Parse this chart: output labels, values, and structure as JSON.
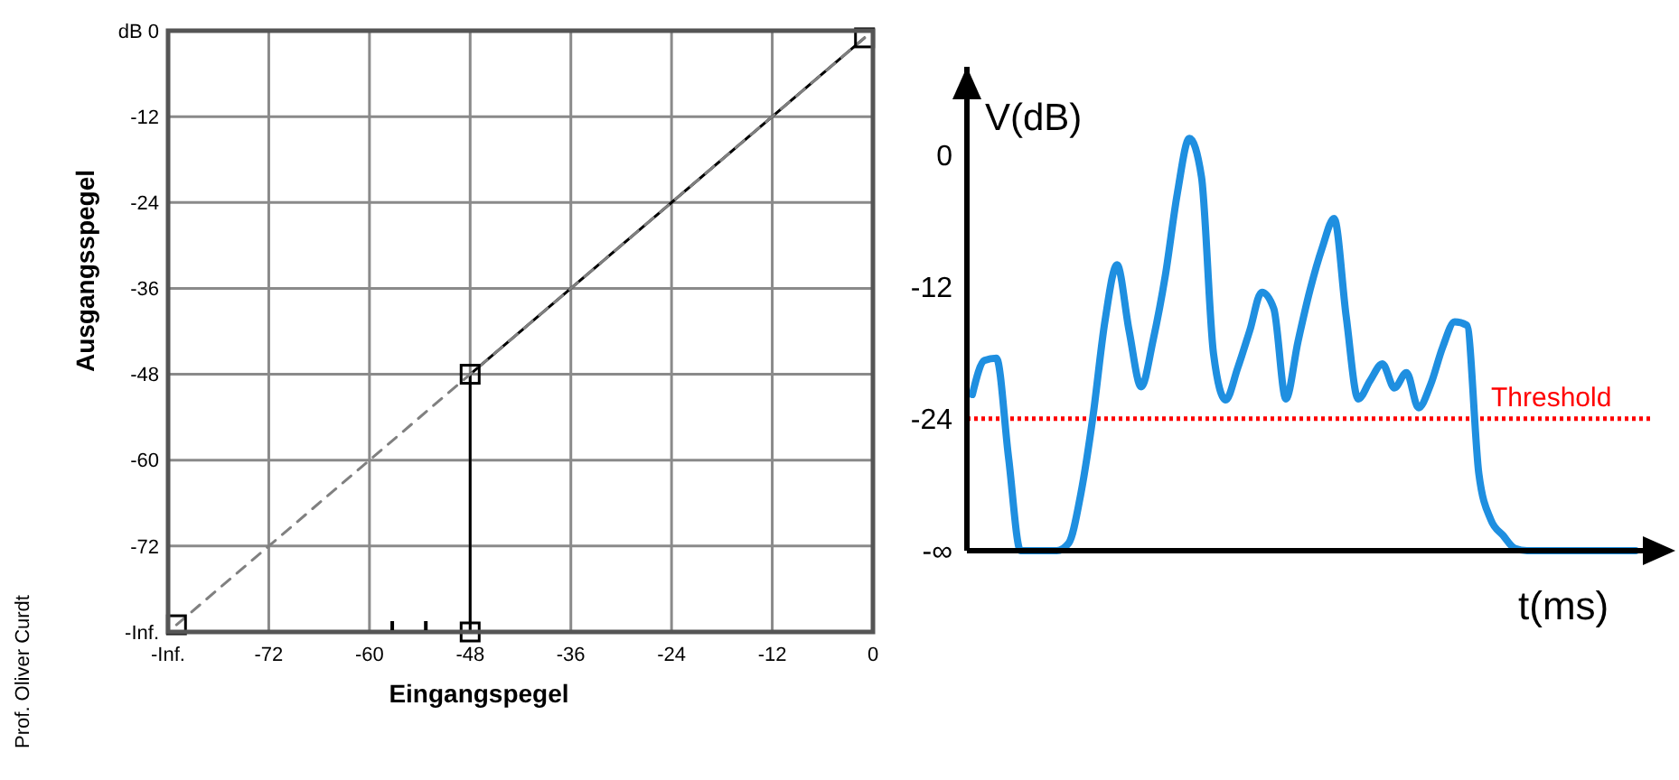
{
  "chart_data": [
    {
      "type": "line",
      "xlabel": "Eingangspegel",
      "ylabel": "Ausgangsspegel",
      "xlim": [
        -84,
        0
      ],
      "ylim": [
        -84,
        0
      ],
      "xticks": [
        {
          "value": -84,
          "label": "-Inf."
        },
        -72,
        -60,
        -48,
        -36,
        -24,
        -12,
        0
      ],
      "yticks": [
        {
          "value": -84,
          "label": "-Inf."
        },
        -72,
        -60,
        -48,
        -36,
        -24,
        -12,
        {
          "value": 0,
          "label": "dB 0"
        }
      ],
      "grid": true,
      "annotations": [
        "Prof. Oliver Curdt"
      ],
      "series": [
        {
          "x": [
            -48,
            -48,
            -1
          ],
          "values": [
            -84,
            -48,
            -1
          ],
          "color": "#000000",
          "line_style": "solid",
          "marker": "none"
        },
        {
          "x": [
            -83,
            -1
          ],
          "values": [
            -83,
            -1
          ],
          "color": "#808080",
          "line_style": "dashed",
          "marker": "none"
        },
        {
          "type": "scatter",
          "x": [
            -83,
            -48,
            -48,
            -1
          ],
          "values": [
            -83,
            -48,
            -84,
            -1
          ],
          "color": "#000000",
          "marker": "square"
        }
      ]
    },
    {
      "type": "line",
      "xlabel": "t(ms)",
      "ylabel": "V(dB)",
      "ylim": [
        -36,
        8
      ],
      "categories": [
        null,
        null,
        null,
        null,
        null,
        null,
        null,
        null,
        null,
        null,
        null,
        null,
        null,
        null,
        null,
        null,
        null,
        null,
        null,
        null,
        null,
        null,
        null,
        null,
        null,
        null,
        null,
        null,
        null,
        null,
        null,
        null,
        null,
        null,
        null,
        null,
        null,
        null,
        null,
        null,
        null,
        null,
        null,
        null,
        null,
        null,
        null,
        null,
        null,
        null,
        null,
        null,
        null,
        null,
        null,
        null
      ],
      "yticks": [
        {
          "value": -36,
          "label": "-∞"
        },
        -24,
        -12,
        0
      ],
      "ref_lines": [
        {
          "axis": "y",
          "value": -24,
          "label": "Threshold",
          "color": "#ff0000",
          "line_style": "dotted"
        }
      ],
      "series": [
        {
          "color": "#1f8fe0",
          "values": [
            -21.8,
            -18.7,
            -18.5,
            -27.5,
            -36,
            -36,
            -36,
            -36,
            -35.3,
            -30.8,
            -23.8,
            -15.1,
            -10,
            -16,
            -21.1,
            -16.8,
            -11,
            -3.5,
            1.5,
            -2,
            -18.1,
            -22.3,
            -19.4,
            -16,
            -12.5,
            -14,
            -22.2,
            -17,
            -12.3,
            -8.5,
            -5.8,
            -14.7,
            -22.2,
            -20.5,
            -19,
            -21.2,
            -19.8,
            -23,
            -20.9,
            -17.5,
            -15.2,
            -15.5,
            -29,
            -33.2,
            -34.6,
            -35.8,
            -36,
            -36,
            -36,
            -36,
            -36,
            -36,
            -36,
            -36,
            -36,
            -36
          ]
        }
      ]
    }
  ]
}
